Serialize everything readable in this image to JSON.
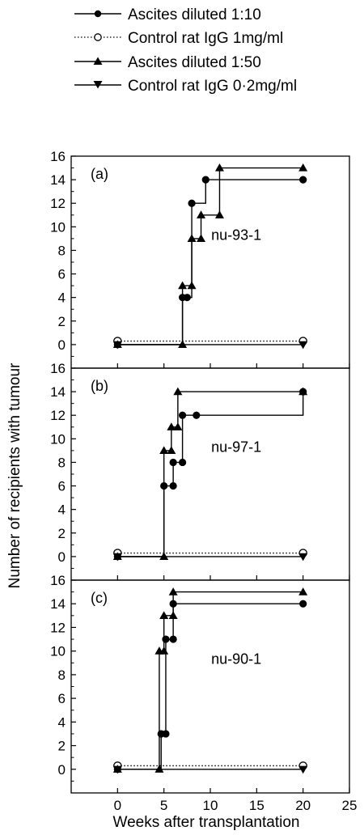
{
  "legend": [
    {
      "label": "Ascites diluted 1:10",
      "marker": "circle-filled",
      "line": "solid"
    },
    {
      "label": "Control rat IgG 1mg/ml",
      "marker": "circle-open",
      "line": "dotted"
    },
    {
      "label": "Ascites diluted 1:50",
      "marker": "triangle-up",
      "line": "solid"
    },
    {
      "label": "Control rat IgG 0·2mg/ml",
      "marker": "triangle-down",
      "line": "solid"
    }
  ],
  "chart_data": {
    "type": "line",
    "step": true,
    "xlabel": "Weeks after transplantation",
    "ylabel": "Number of recipients with tumour",
    "xlim": [
      -5,
      25
    ],
    "xticks": [
      0,
      5,
      10,
      15,
      20,
      25
    ],
    "ylim": [
      -2,
      16
    ],
    "yticks": [
      0,
      2,
      4,
      6,
      8,
      10,
      12,
      14,
      16
    ],
    "grid": false,
    "legend_position": "top",
    "panels": [
      {
        "tag": "(a)",
        "label": "nu-93-1",
        "series": [
          {
            "name": "Ascites diluted 1:10",
            "x": [
              0,
              7,
              7.5,
              8,
              9.5,
              20
            ],
            "y": [
              0,
              4,
              4,
              12,
              14,
              14
            ]
          },
          {
            "name": "Control rat IgG 1mg/ml",
            "x": [
              0,
              20
            ],
            "y": [
              0.3,
              0.3
            ]
          },
          {
            "name": "Ascites diluted 1:50",
            "x": [
              0,
              7,
              7,
              8,
              8,
              9,
              9,
              11,
              11,
              20
            ],
            "y": [
              0,
              0,
              5,
              5,
              9,
              9,
              11,
              11,
              15,
              15
            ]
          },
          {
            "name": "Control rat IgG 0·2mg/ml",
            "x": [
              0,
              20
            ],
            "y": [
              0,
              0
            ]
          }
        ]
      },
      {
        "tag": "(b)",
        "label": "nu-97-1",
        "series": [
          {
            "name": "Ascites diluted 1:10",
            "x": [
              0,
              5,
              6,
              6,
              7,
              7,
              8.5,
              20
            ],
            "y": [
              0,
              6,
              6,
              8,
              8,
              12,
              12,
              14
            ]
          },
          {
            "name": "Control rat IgG 1mg/ml",
            "x": [
              0,
              20
            ],
            "y": [
              0.3,
              0.3
            ]
          },
          {
            "name": "Ascites diluted 1:50",
            "x": [
              0,
              5,
              5,
              5.8,
              5.8,
              6.5,
              6.5,
              20
            ],
            "y": [
              0,
              0,
              9,
              9,
              11,
              11,
              14,
              14
            ]
          },
          {
            "name": "Control rat IgG 0·2mg/ml",
            "x": [
              0,
              20
            ],
            "y": [
              0,
              0
            ]
          }
        ]
      },
      {
        "tag": "(c)",
        "label": "nu-90-1",
        "series": [
          {
            "name": "Ascites diluted 1:10",
            "x": [
              0,
              4.7,
              5.2,
              5.2,
              6,
              6,
              20
            ],
            "y": [
              0,
              3,
              3,
              11,
              11,
              14,
              14
            ]
          },
          {
            "name": "Control rat IgG 1mg/ml",
            "x": [
              0,
              20
            ],
            "y": [
              0.3,
              0.3
            ]
          },
          {
            "name": "Ascites diluted 1:50",
            "x": [
              0,
              4.5,
              4.5,
              5,
              5,
              6,
              6,
              20
            ],
            "y": [
              0,
              0,
              10,
              10,
              13,
              13,
              15,
              15
            ]
          },
          {
            "name": "Control rat IgG 0·2mg/ml",
            "x": [
              0,
              20
            ],
            "y": [
              0,
              0
            ]
          }
        ]
      }
    ]
  }
}
